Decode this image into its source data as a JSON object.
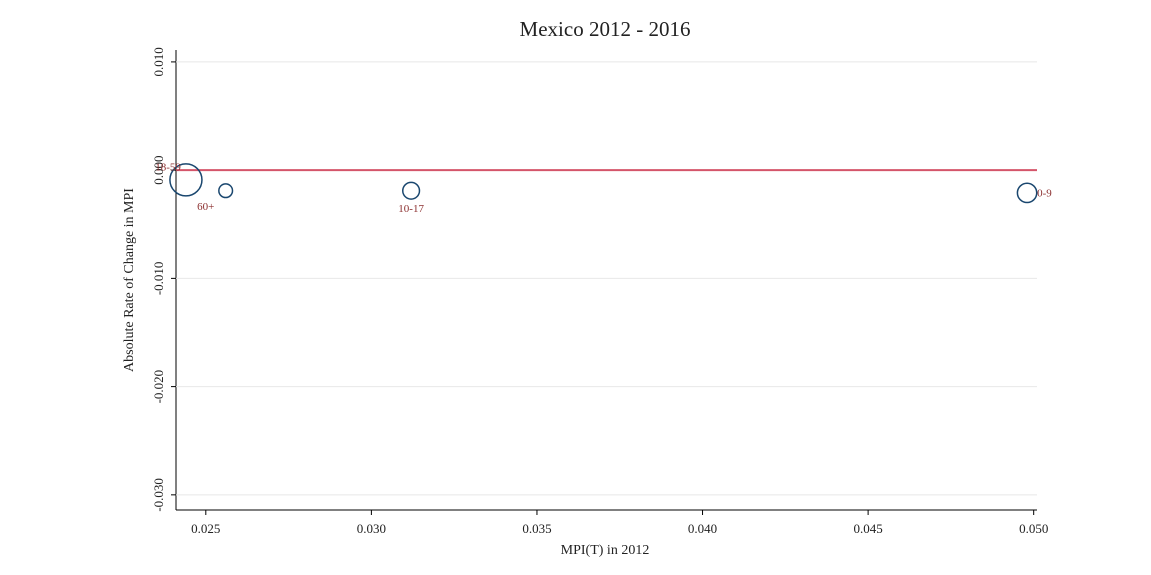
{
  "chart_data": {
    "type": "scatter",
    "title": "Mexico 2012 - 2016",
    "x_label": "MPI(T) in 2012",
    "y_label": "Absolute Rate of Change in MPI",
    "labels": [
      "18-59",
      "60+",
      "10-17",
      "0-9"
    ],
    "x": [
      0.0244,
      0.0256,
      0.0312,
      0.0498
    ],
    "values": [
      -0.0009,
      -0.0019,
      -0.0019,
      -0.0021
    ],
    "sizes": [
      55,
      10,
      15,
      20
    ],
    "color": "#1a476f",
    "xlim": [
      0.0241,
      0.0501
    ],
    "ylim": [
      -0.0314,
      0.0111
    ],
    "xticks": [
      {
        "value": 0.025,
        "label": "0.025"
      },
      {
        "value": 0.03,
        "label": "0.030"
      },
      {
        "value": 0.035,
        "label": "0.035"
      },
      {
        "value": 0.04,
        "label": "0.040"
      },
      {
        "value": 0.045,
        "label": "0.045"
      },
      {
        "value": 0.05,
        "label": "0.050"
      }
    ],
    "yticks": [
      {
        "value": 0.01,
        "label": "0.010"
      },
      {
        "value": 0,
        "label": "0.000"
      },
      {
        "value": -0.01,
        "label": "-0.010"
      },
      {
        "value": -0.02,
        "label": "-0.020"
      },
      {
        "value": -0.03,
        "label": "-0.030"
      }
    ],
    "grid": true,
    "reference_line": {
      "y": 0,
      "color": "#d4556a"
    }
  }
}
